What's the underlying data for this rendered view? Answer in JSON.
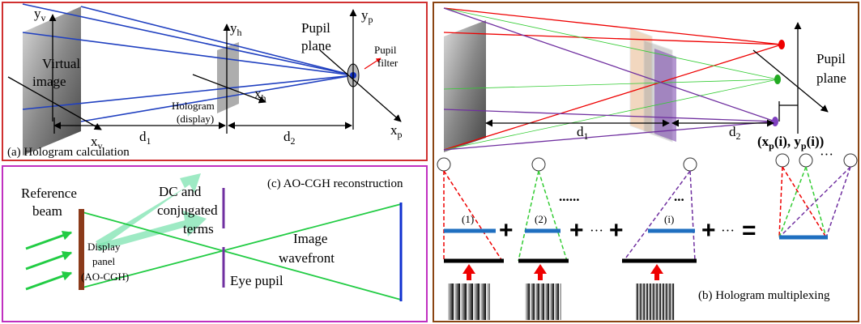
{
  "panel_a": {
    "y_v": {
      "base": "y",
      "sub": "v"
    },
    "virtual_image": [
      "Virtual",
      "image"
    ],
    "x_v": {
      "base": "x",
      "sub": "v"
    },
    "y_h": {
      "base": "y",
      "sub": "h"
    },
    "hologram": [
      "Hologram",
      "(display)"
    ],
    "x_h": {
      "base": "x",
      "sub": "h"
    },
    "pupil_plane": [
      "Pupil",
      "plane"
    ],
    "y_p": {
      "base": "y",
      "sub": "p"
    },
    "pupil_filter": [
      "Pupil",
      "filter"
    ],
    "x_p": {
      "base": "x",
      "sub": "p"
    },
    "d1": {
      "base": "d",
      "sub": "1"
    },
    "d2": {
      "base": "d",
      "sub": "2"
    },
    "caption": "(a) Hologram calculation"
  },
  "panel_b": {
    "pupil_plane": [
      "Pupil",
      "plane"
    ],
    "d1": {
      "base": "d",
      "sub": "1"
    },
    "d2": {
      "base": "d",
      "sub": "2"
    },
    "pupil_position": [
      "(x",
      "p",
      "(i), y",
      "p",
      "(i))"
    ],
    "labels": [
      "(1)",
      "(2)",
      "(i)"
    ],
    "operators": [
      "+",
      "+",
      "···",
      "+",
      "+",
      "···",
      "="
    ],
    "ellipses": [
      "......",
      "...",
      "···"
    ],
    "caption": "(b) Hologram multiplexing"
  },
  "panel_c": {
    "reference_beam": [
      "Reference",
      "beam"
    ],
    "dc_terms": [
      "DC and",
      "conjugated",
      "terms"
    ],
    "caption": "(c) AO-CGH reconstruction",
    "image_wavefront": [
      "Image",
      "wavefront"
    ],
    "display_panel": [
      "Display",
      "panel",
      "(AO-CGH)"
    ],
    "eye_pupil": "Eye pupil"
  }
}
